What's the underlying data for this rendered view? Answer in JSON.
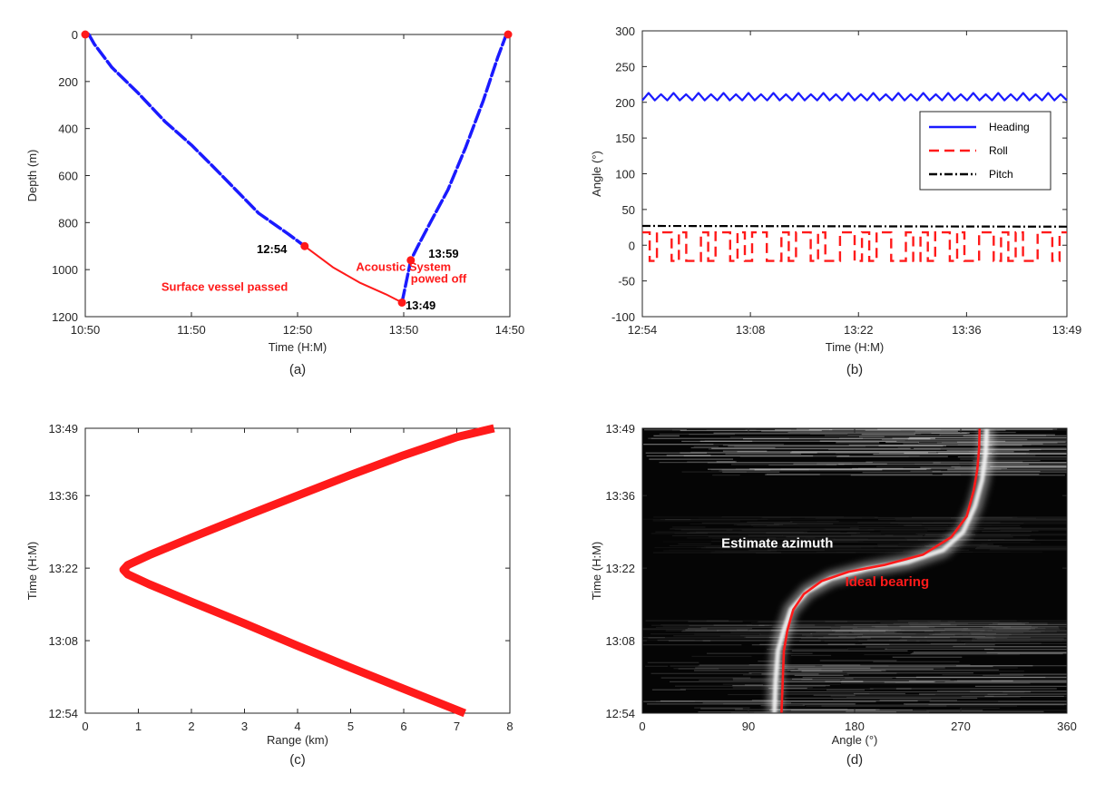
{
  "colors": {
    "blue": "#1a1aff",
    "red": "#ff1a1a",
    "black": "#000000",
    "axis": "#262626",
    "dark_bg": "#050505"
  },
  "chart_data": [
    {
      "id": "a",
      "type": "line",
      "panel_label": "(a)",
      "xlabel": "Time (H:M)",
      "ylabel": "Depth (m)",
      "x_ticks": [
        "10:50",
        "11:50",
        "12:50",
        "13:50",
        "14:50"
      ],
      "x_tick_minutes": [
        650,
        710,
        770,
        830,
        890
      ],
      "xlim_minutes": [
        650,
        890
      ],
      "y_ticks": [
        0,
        200,
        400,
        600,
        800,
        1000,
        1200
      ],
      "ylim": [
        0,
        1200
      ],
      "y_reversed": true,
      "series": [
        {
          "color": "blue",
          "style": "dashed",
          "x_minutes": [
            652,
            655,
            665,
            680,
            695,
            710,
            722,
            735,
            748,
            765,
            774
          ],
          "y": [
            0,
            40,
            140,
            250,
            370,
            470,
            560,
            660,
            760,
            850,
            900
          ]
        },
        {
          "color": "red",
          "style": "solid",
          "x_minutes": [
            774,
            790,
            805,
            820,
            829
          ],
          "y": [
            900,
            990,
            1055,
            1105,
            1140
          ]
        },
        {
          "color": "blue",
          "style": "dashed",
          "x_minutes": [
            829,
            834,
            838,
            845,
            855,
            865,
            875,
            883,
            888
          ],
          "y": [
            1140,
            960,
            900,
            800,
            660,
            480,
            280,
            100,
            0
          ]
        }
      ],
      "points": [
        {
          "x_minutes": 650,
          "y": 0
        },
        {
          "x_minutes": 889,
          "y": 0
        },
        {
          "x_minutes": 774,
          "y": 900
        },
        {
          "x_minutes": 829,
          "y": 1140
        },
        {
          "x_minutes": 834,
          "y": 960
        }
      ],
      "annotations": [
        {
          "text": "12:54",
          "x_minutes": 764,
          "y": 930,
          "color": "black",
          "anchor": "end"
        },
        {
          "text": "13:49",
          "x_minutes": 831,
          "y": 1170,
          "color": "black",
          "anchor": "start"
        },
        {
          "text": "13:59",
          "x_minutes": 844,
          "y": 950,
          "color": "black",
          "anchor": "start"
        },
        {
          "text": "Surface vessel passed",
          "x_minutes": 693,
          "y": 1090,
          "color": "red",
          "anchor": "start"
        },
        {
          "text": "Acoustic System",
          "x_minutes": 803,
          "y": 1005,
          "color": "red",
          "anchor": "start"
        },
        {
          "text": "powed off",
          "x_minutes": 834,
          "y": 1055,
          "color": "red",
          "anchor": "start"
        }
      ]
    },
    {
      "id": "b",
      "type": "line",
      "panel_label": "(b)",
      "xlabel": "Time (H:M)",
      "ylabel": "Angle (°)",
      "x_ticks": [
        "12:54",
        "13:08",
        "13:22",
        "13:36",
        "13:49"
      ],
      "x_tick_minutes": [
        774,
        788,
        802,
        816,
        829
      ],
      "xlim_minutes": [
        774,
        829
      ],
      "y_ticks": [
        -100,
        -50,
        0,
        50,
        100,
        150,
        200,
        250,
        300
      ],
      "ylim": [
        -100,
        300
      ],
      "legend": {
        "position": "right",
        "entries": [
          "Heading",
          "Roll",
          "Pitch"
        ]
      },
      "series": [
        {
          "name": "Heading",
          "color": "blue",
          "style": "solid",
          "mean": 207,
          "amplitude": 5,
          "cycles": 34
        },
        {
          "name": "Roll",
          "color": "red",
          "style": "dashed",
          "low": -22,
          "high": 18,
          "segments": 58
        },
        {
          "name": "Pitch",
          "color": "black",
          "style": "dashdot",
          "start": 27,
          "end": 26
        }
      ]
    },
    {
      "id": "c",
      "type": "line",
      "panel_label": "(c)",
      "xlabel": "Range (km)",
      "ylabel": "Time (H:M)",
      "x_ticks": [
        0,
        1,
        2,
        3,
        4,
        5,
        6,
        7,
        8
      ],
      "xlim": [
        0,
        8
      ],
      "y_ticks": [
        "12:54",
        "13:08",
        "13:22",
        "13:36",
        "13:49"
      ],
      "y_tick_minutes": [
        774,
        788,
        802,
        816,
        829
      ],
      "ylim_minutes": [
        774,
        829
      ],
      "series": [
        {
          "color": "red",
          "style": "thick",
          "x": [
            7.15,
            6.0,
            5.0,
            4.0,
            3.0,
            2.0,
            1.2,
            0.8,
            0.72,
            0.8,
            1.2,
            2.0,
            3.0,
            4.0,
            5.0,
            6.0,
            7.0,
            7.7
          ],
          "y_minutes": [
            774,
            778.7,
            782.8,
            787,
            791.3,
            795.5,
            798.9,
            800.8,
            801.7,
            802.6,
            804.5,
            807.9,
            812.0,
            816.0,
            820.0,
            823.8,
            827.3,
            829
          ]
        }
      ]
    },
    {
      "id": "d",
      "type": "heatmap",
      "panel_label": "(d)",
      "xlabel": "Angle (°)",
      "ylabel": "Time (H:M)",
      "x_ticks": [
        0,
        90,
        180,
        270,
        360
      ],
      "xlim": [
        0,
        360
      ],
      "y_ticks": [
        "12:54",
        "13:08",
        "13:22",
        "13:36",
        "13:49"
      ],
      "y_tick_minutes": [
        774,
        788,
        802,
        816,
        829
      ],
      "ylim_minutes": [
        774,
        829
      ],
      "annotations": [
        {
          "text": "Estimate azimuth",
          "x": 67,
          "y_minutes": 806,
          "color": "white"
        },
        {
          "text": "Ideal bearing",
          "x": 172,
          "y_minutes": 798.5,
          "color": "red"
        }
      ],
      "series": [
        {
          "name": "Ideal bearing",
          "color": "red",
          "x": [
            118,
            119,
            120,
            123,
            128,
            137,
            152,
            175,
            205,
            238,
            262,
            275,
            281,
            284,
            285.5,
            286
          ],
          "y_minutes": [
            774,
            780,
            786,
            790,
            794,
            797,
            799.5,
            801.3,
            802.6,
            804.6,
            808,
            812,
            817,
            821,
            825,
            829
          ]
        },
        {
          "name": "Estimate azimuth",
          "color": "white",
          "x": [
            112,
            113,
            115,
            120,
            126,
            140,
            160,
            190,
            225,
            255,
            272,
            282,
            288,
            291,
            292
          ],
          "y_minutes": [
            774,
            780,
            786,
            790,
            794,
            797.5,
            800,
            801.8,
            803.2,
            805.5,
            809,
            814,
            819,
            824,
            829
          ]
        }
      ]
    }
  ]
}
